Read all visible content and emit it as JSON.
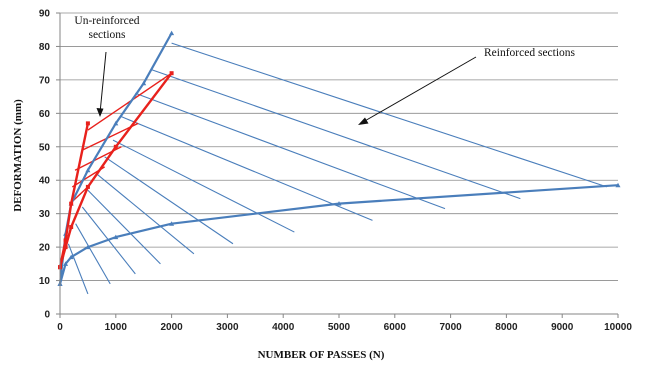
{
  "chart_data": {
    "type": "line",
    "xlabel": "NUMBER OF PASSES  (N)",
    "ylabel": "DEFORMATION (mm)",
    "xlim": [
      0,
      10000
    ],
    "ylim": [
      0,
      90
    ],
    "x_ticks": [
      0,
      1000,
      2000,
      3000,
      4000,
      5000,
      6000,
      7000,
      8000,
      9000,
      10000
    ],
    "y_ticks": [
      0,
      10,
      20,
      30,
      40,
      50,
      60,
      70,
      80,
      90
    ],
    "grid": "horizontal",
    "legend": "none",
    "annotations": [
      {
        "id": "unreinforced",
        "text": [
          "Un-reinforced",
          "sections"
        ]
      },
      {
        "id": "reinforced",
        "text": [
          "Reinforced sections"
        ]
      }
    ],
    "series": [
      {
        "id": "reinforced-steep",
        "color": "#4a7ebb",
        "points": [
          [
            0,
            9
          ],
          [
            100,
            24
          ],
          [
            200,
            33
          ],
          [
            500,
            43
          ],
          [
            1000,
            57
          ],
          [
            1500,
            69
          ],
          [
            2000,
            84
          ]
        ]
      },
      {
        "id": "reinforced-flat",
        "color": "#4a7ebb",
        "points": [
          [
            0,
            9
          ],
          [
            100,
            15
          ],
          [
            200,
            17
          ],
          [
            500,
            20
          ],
          [
            1000,
            23
          ],
          [
            2000,
            27
          ],
          [
            5000,
            33
          ],
          [
            10000,
            38.5
          ]
        ]
      },
      {
        "id": "unreinforced-steep",
        "color": "#e8211c",
        "points": [
          [
            0,
            14
          ],
          [
            100,
            22
          ],
          [
            200,
            33
          ],
          [
            500,
            57
          ]
        ]
      },
      {
        "id": "unreinforced-flat",
        "color": "#e8211c",
        "points": [
          [
            0,
            14
          ],
          [
            100,
            20
          ],
          [
            200,
            26
          ],
          [
            500,
            38
          ],
          [
            1000,
            50
          ],
          [
            2000,
            72
          ]
        ]
      }
    ],
    "reinforced_hatch": [
      [
        [
          2000,
          81
        ],
        [
          9800,
          38
        ]
      ],
      [
        [
          1650,
          73
        ],
        [
          8250,
          34.5
        ]
      ],
      [
        [
          1350,
          66
        ],
        [
          6900,
          31.5
        ]
      ],
      [
        [
          1100,
          59
        ],
        [
          5600,
          28
        ]
      ],
      [
        [
          950,
          52
        ],
        [
          4200,
          24.5
        ]
      ],
      [
        [
          800,
          47
        ],
        [
          3100,
          21
        ]
      ],
      [
        [
          650,
          42
        ],
        [
          2400,
          18
        ]
      ],
      [
        [
          500,
          37
        ],
        [
          1800,
          15
        ]
      ],
      [
        [
          400,
          32
        ],
        [
          1350,
          12
        ]
      ],
      [
        [
          280,
          27
        ],
        [
          900,
          9
        ]
      ],
      [
        [
          150,
          21
        ],
        [
          500,
          6
        ]
      ]
    ],
    "unreinforced_hatch": [
      [
        [
          500,
          55
        ],
        [
          2000,
          72
        ]
      ],
      [
        [
          400,
          49
        ],
        [
          1400,
          57
        ]
      ],
      [
        [
          270,
          43
        ],
        [
          1100,
          50
        ]
      ],
      [
        [
          220,
          38
        ],
        [
          800,
          44
        ]
      ],
      [
        [
          180,
          33
        ],
        [
          500,
          38
        ]
      ]
    ]
  }
}
